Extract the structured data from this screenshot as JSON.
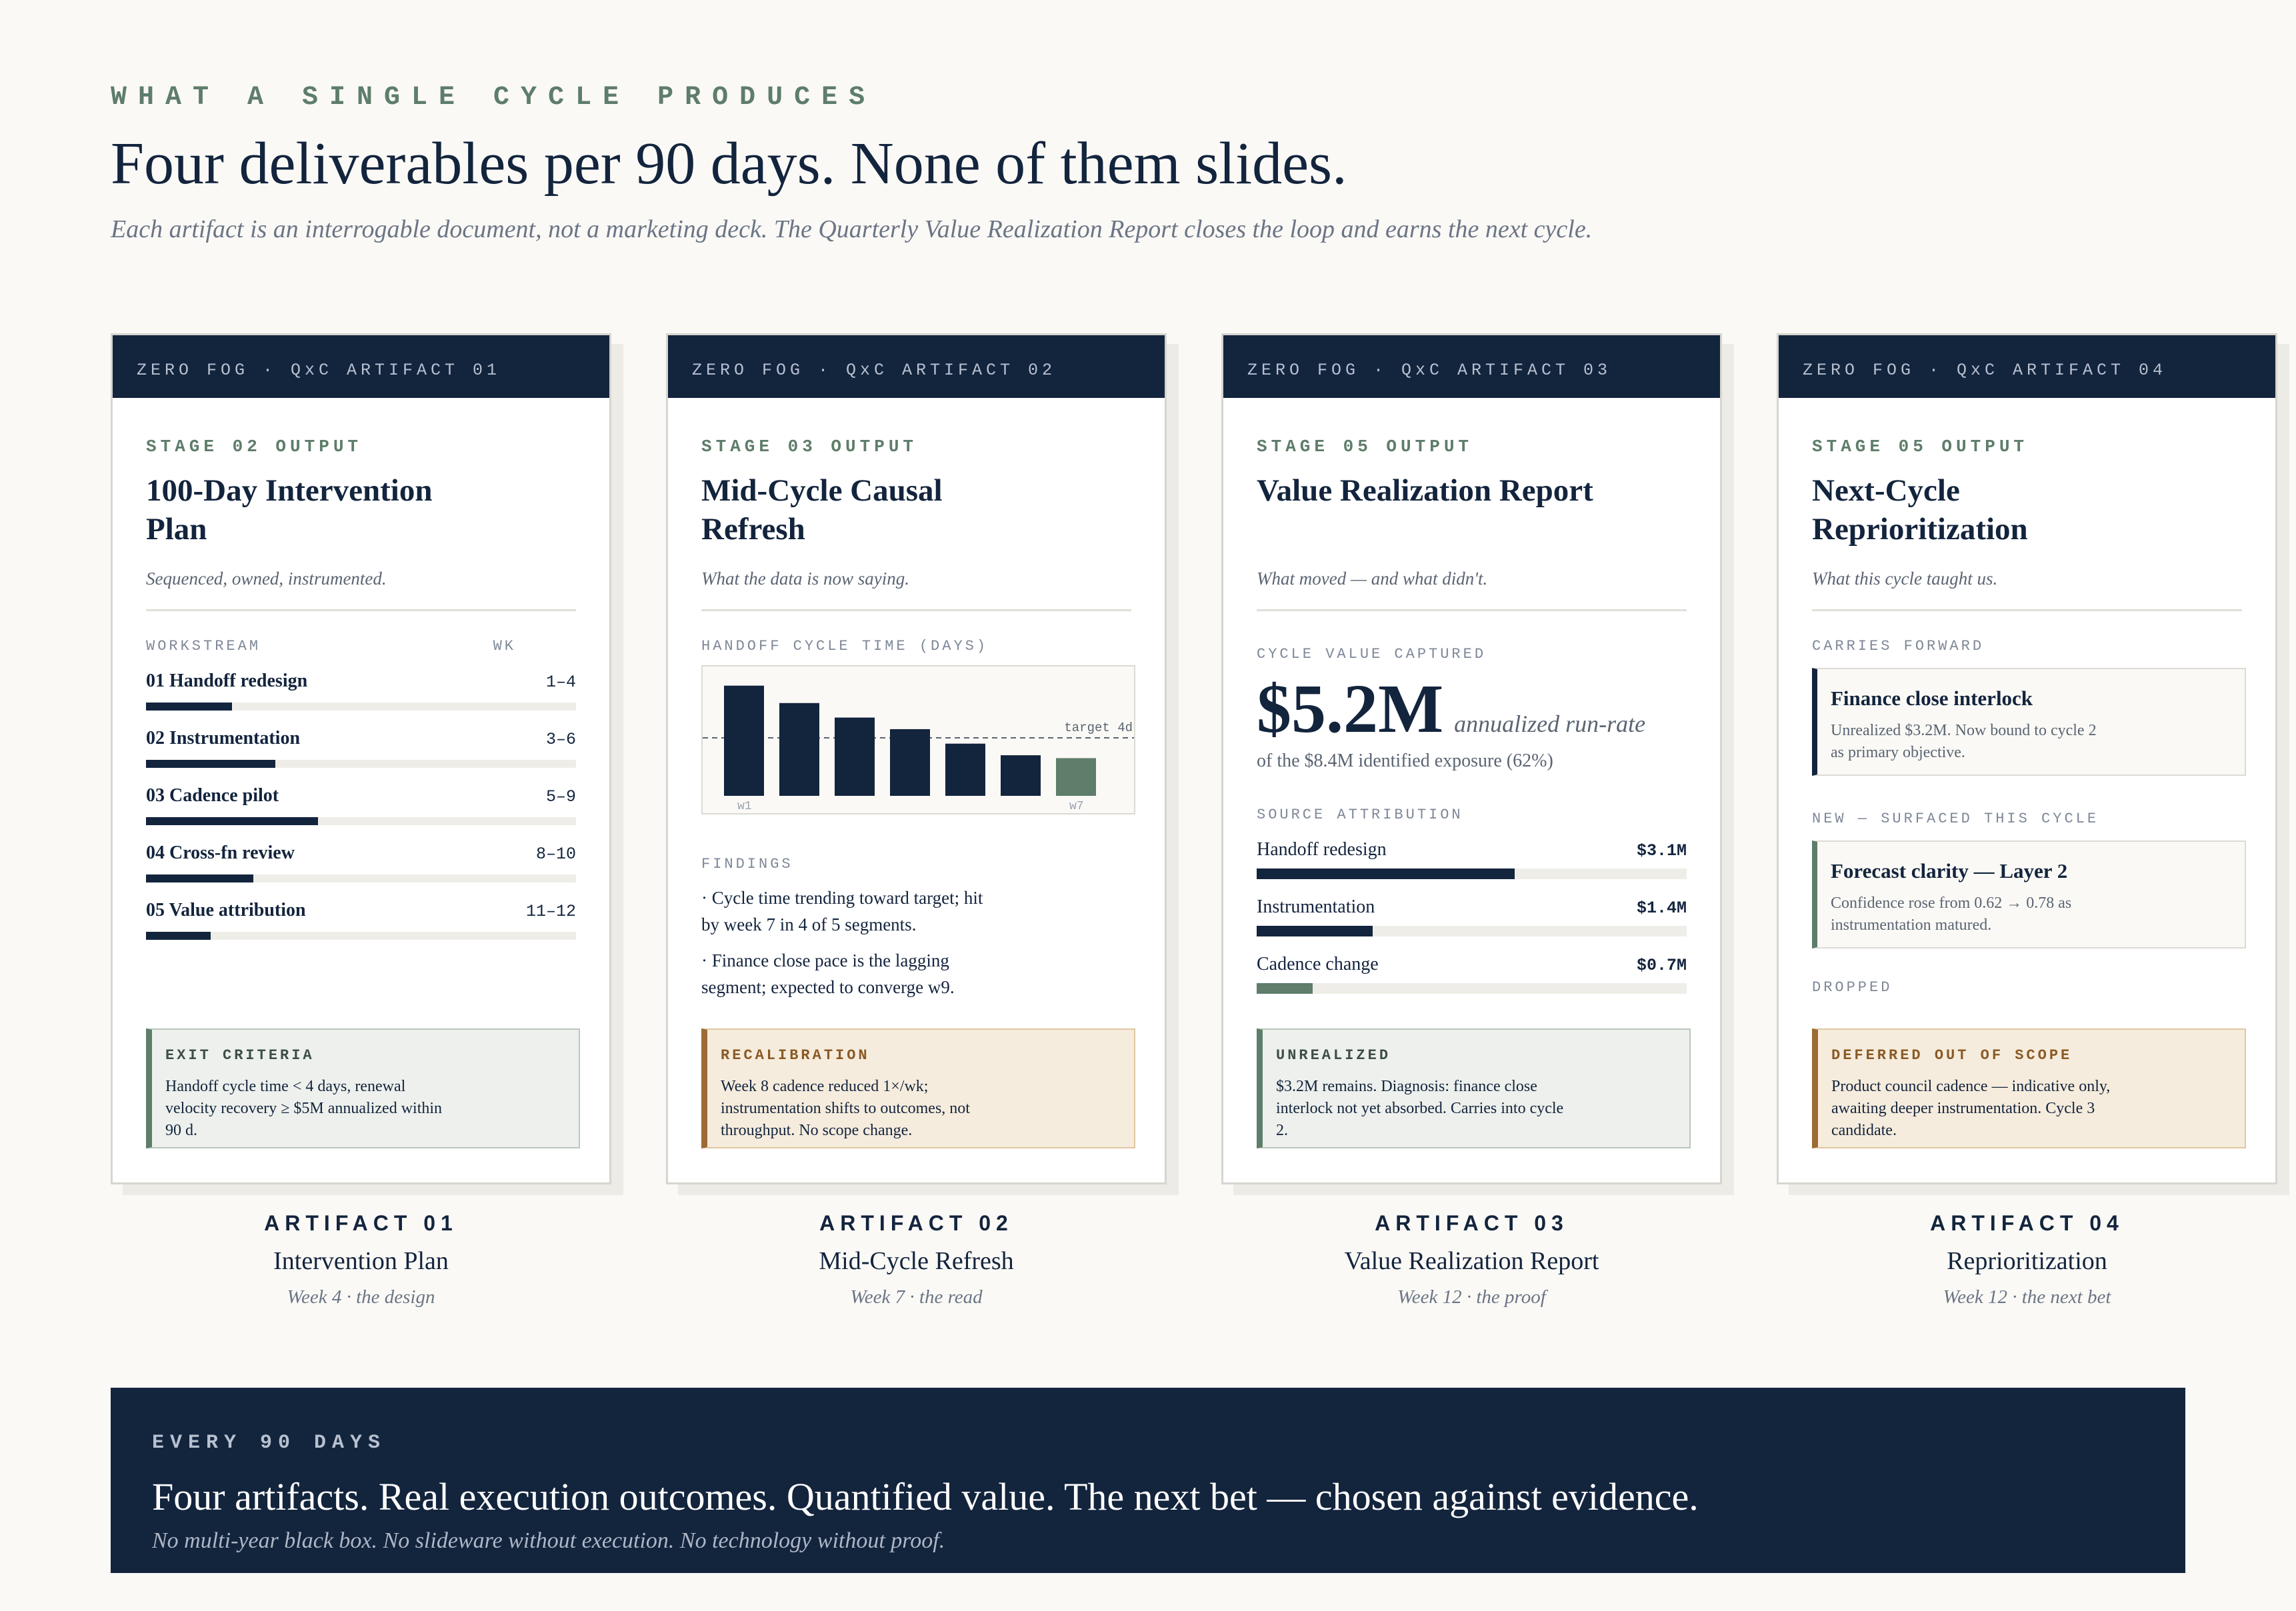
{
  "header": {
    "eyebrow": "WHAT A SINGLE CYCLE PRODUCES",
    "title": "Four deliverables per 90 days. None of them slides.",
    "subtitle": "Each artifact is an interrogable document, not a marketing deck. The Quarterly Value Realization Report closes the loop and earns the next cycle."
  },
  "colors": {
    "navy": "#13243d",
    "sage": "#5e7d6a",
    "amber": "#9b6a35",
    "paper": "#faf9f6"
  },
  "cards": [
    {
      "header": "ZERO FOG · QxC ARTIFACT 01",
      "stage": "STAGE 02 OUTPUT",
      "title": "100-Day Intervention Plan",
      "tagline": "Sequenced, owned, instrumented.",
      "col_workstream": "WORKSTREAM",
      "col_wk": "WK",
      "workstreams": [
        {
          "name": "01 Handoff redesign",
          "weeks": "1–4",
          "progress": 0.2
        },
        {
          "name": "02 Instrumentation",
          "weeks": "3–6",
          "progress": 0.3
        },
        {
          "name": "03 Cadence pilot",
          "weeks": "5–9",
          "progress": 0.4
        },
        {
          "name": "04 Cross-fn review",
          "weeks": "8–10",
          "progress": 0.25
        },
        {
          "name": "05 Value attribution",
          "weeks": "11–12",
          "progress": 0.15
        }
      ],
      "callout_label": "EXIT CRITERIA",
      "callout_text": "Handoff cycle time < 4 days, renewal velocity recovery ≥ $5M annualized within 90 d."
    },
    {
      "header": "ZERO FOG · QxC ARTIFACT 02",
      "stage": "STAGE 03 OUTPUT",
      "title": "Mid-Cycle Causal Refresh",
      "tagline": "What the data is now saying.",
      "chart_label": "HANDOFF CYCLE TIME (DAYS)",
      "findings_label": "FINDINGS",
      "findings": [
        "· Cycle time trending toward target; hit by week 7 in 4 of 5 segments.",
        "· Finance close pace is the lagging segment; expected to converge w9."
      ],
      "callout_label": "RECALIBRATION",
      "callout_text": "Week 8 cadence reduced 1×/wk; instrumentation shifts to outcomes, not throughput. No scope change."
    },
    {
      "header": "ZERO FOG · QxC ARTIFACT 03",
      "stage": "STAGE 05 OUTPUT",
      "title": "Value Realization Report",
      "tagline": "What moved — and what didn't.",
      "value_label": "CYCLE VALUE CAPTURED",
      "value": "$5.2M",
      "value_note": "annualized run-rate",
      "value_of": "of the $8.4M identified exposure (62%)",
      "attr_label": "SOURCE ATTRIBUTION",
      "attributions": [
        {
          "name": "Handoff redesign",
          "value": "$3.1M",
          "share": 0.6,
          "color": "#13243d"
        },
        {
          "name": "Instrumentation",
          "value": "$1.4M",
          "share": 0.27,
          "color": "#13243d"
        },
        {
          "name": "Cadence change",
          "value": "$0.7M",
          "share": 0.13,
          "color": "#5e7d6a"
        }
      ],
      "callout_label": "UNREALIZED",
      "callout_text": "$3.2M remains. Diagnosis: finance close interlock not yet absorbed. Carries into cycle 2."
    },
    {
      "header": "ZERO FOG · QxC ARTIFACT 04",
      "stage": "STAGE 05 OUTPUT",
      "title": "Next-Cycle Reprioritization",
      "tagline": "What this cycle taught us.",
      "carries_label": "CARRIES FORWARD",
      "carries_title": "Finance close interlock",
      "carries_text": "Unrealized $3.2M. Now bound to cycle 2 as primary objective.",
      "new_label": "NEW — SURFACED THIS CYCLE",
      "new_title": "Forecast clarity — Layer 2",
      "new_text": "Confidence rose from 0.62 → 0.78 as instrumentation matured.",
      "dropped_label": "DROPPED",
      "callout_label": "DEFERRED OUT OF SCOPE",
      "callout_text": "Product council cadence — indicative only, awaiting deeper instrumentation. Cycle 3 candidate."
    }
  ],
  "captions": [
    {
      "num": "ARTIFACT 01",
      "name": "Intervention Plan",
      "week": "Week 4 · the design"
    },
    {
      "num": "ARTIFACT 02",
      "name": "Mid-Cycle Refresh",
      "week": "Week 7 · the read"
    },
    {
      "num": "ARTIFACT 03",
      "name": "Value Realization Report",
      "week": "Week 12 · the proof"
    },
    {
      "num": "ARTIFACT 04",
      "name": "Reprioritization",
      "week": "Week 12 · the next bet"
    }
  ],
  "chart_data": {
    "type": "bar",
    "title": "HANDOFF CYCLE TIME (DAYS)",
    "tick_labels": [
      "w1",
      "w7"
    ],
    "values": [
      7.6,
      6.4,
      5.4,
      4.6,
      3.6,
      2.8,
      2.6
    ],
    "highlight_last": true,
    "target": 4,
    "target_label": "target 4d",
    "ylim": [
      0,
      8
    ]
  },
  "band": {
    "eyebrow": "EVERY 90 DAYS",
    "title": "Four artifacts. Real execution outcomes. Quantified value. The next bet — chosen against evidence.",
    "subtitle": "No multi-year black box. No slideware without execution. No technology without proof."
  }
}
